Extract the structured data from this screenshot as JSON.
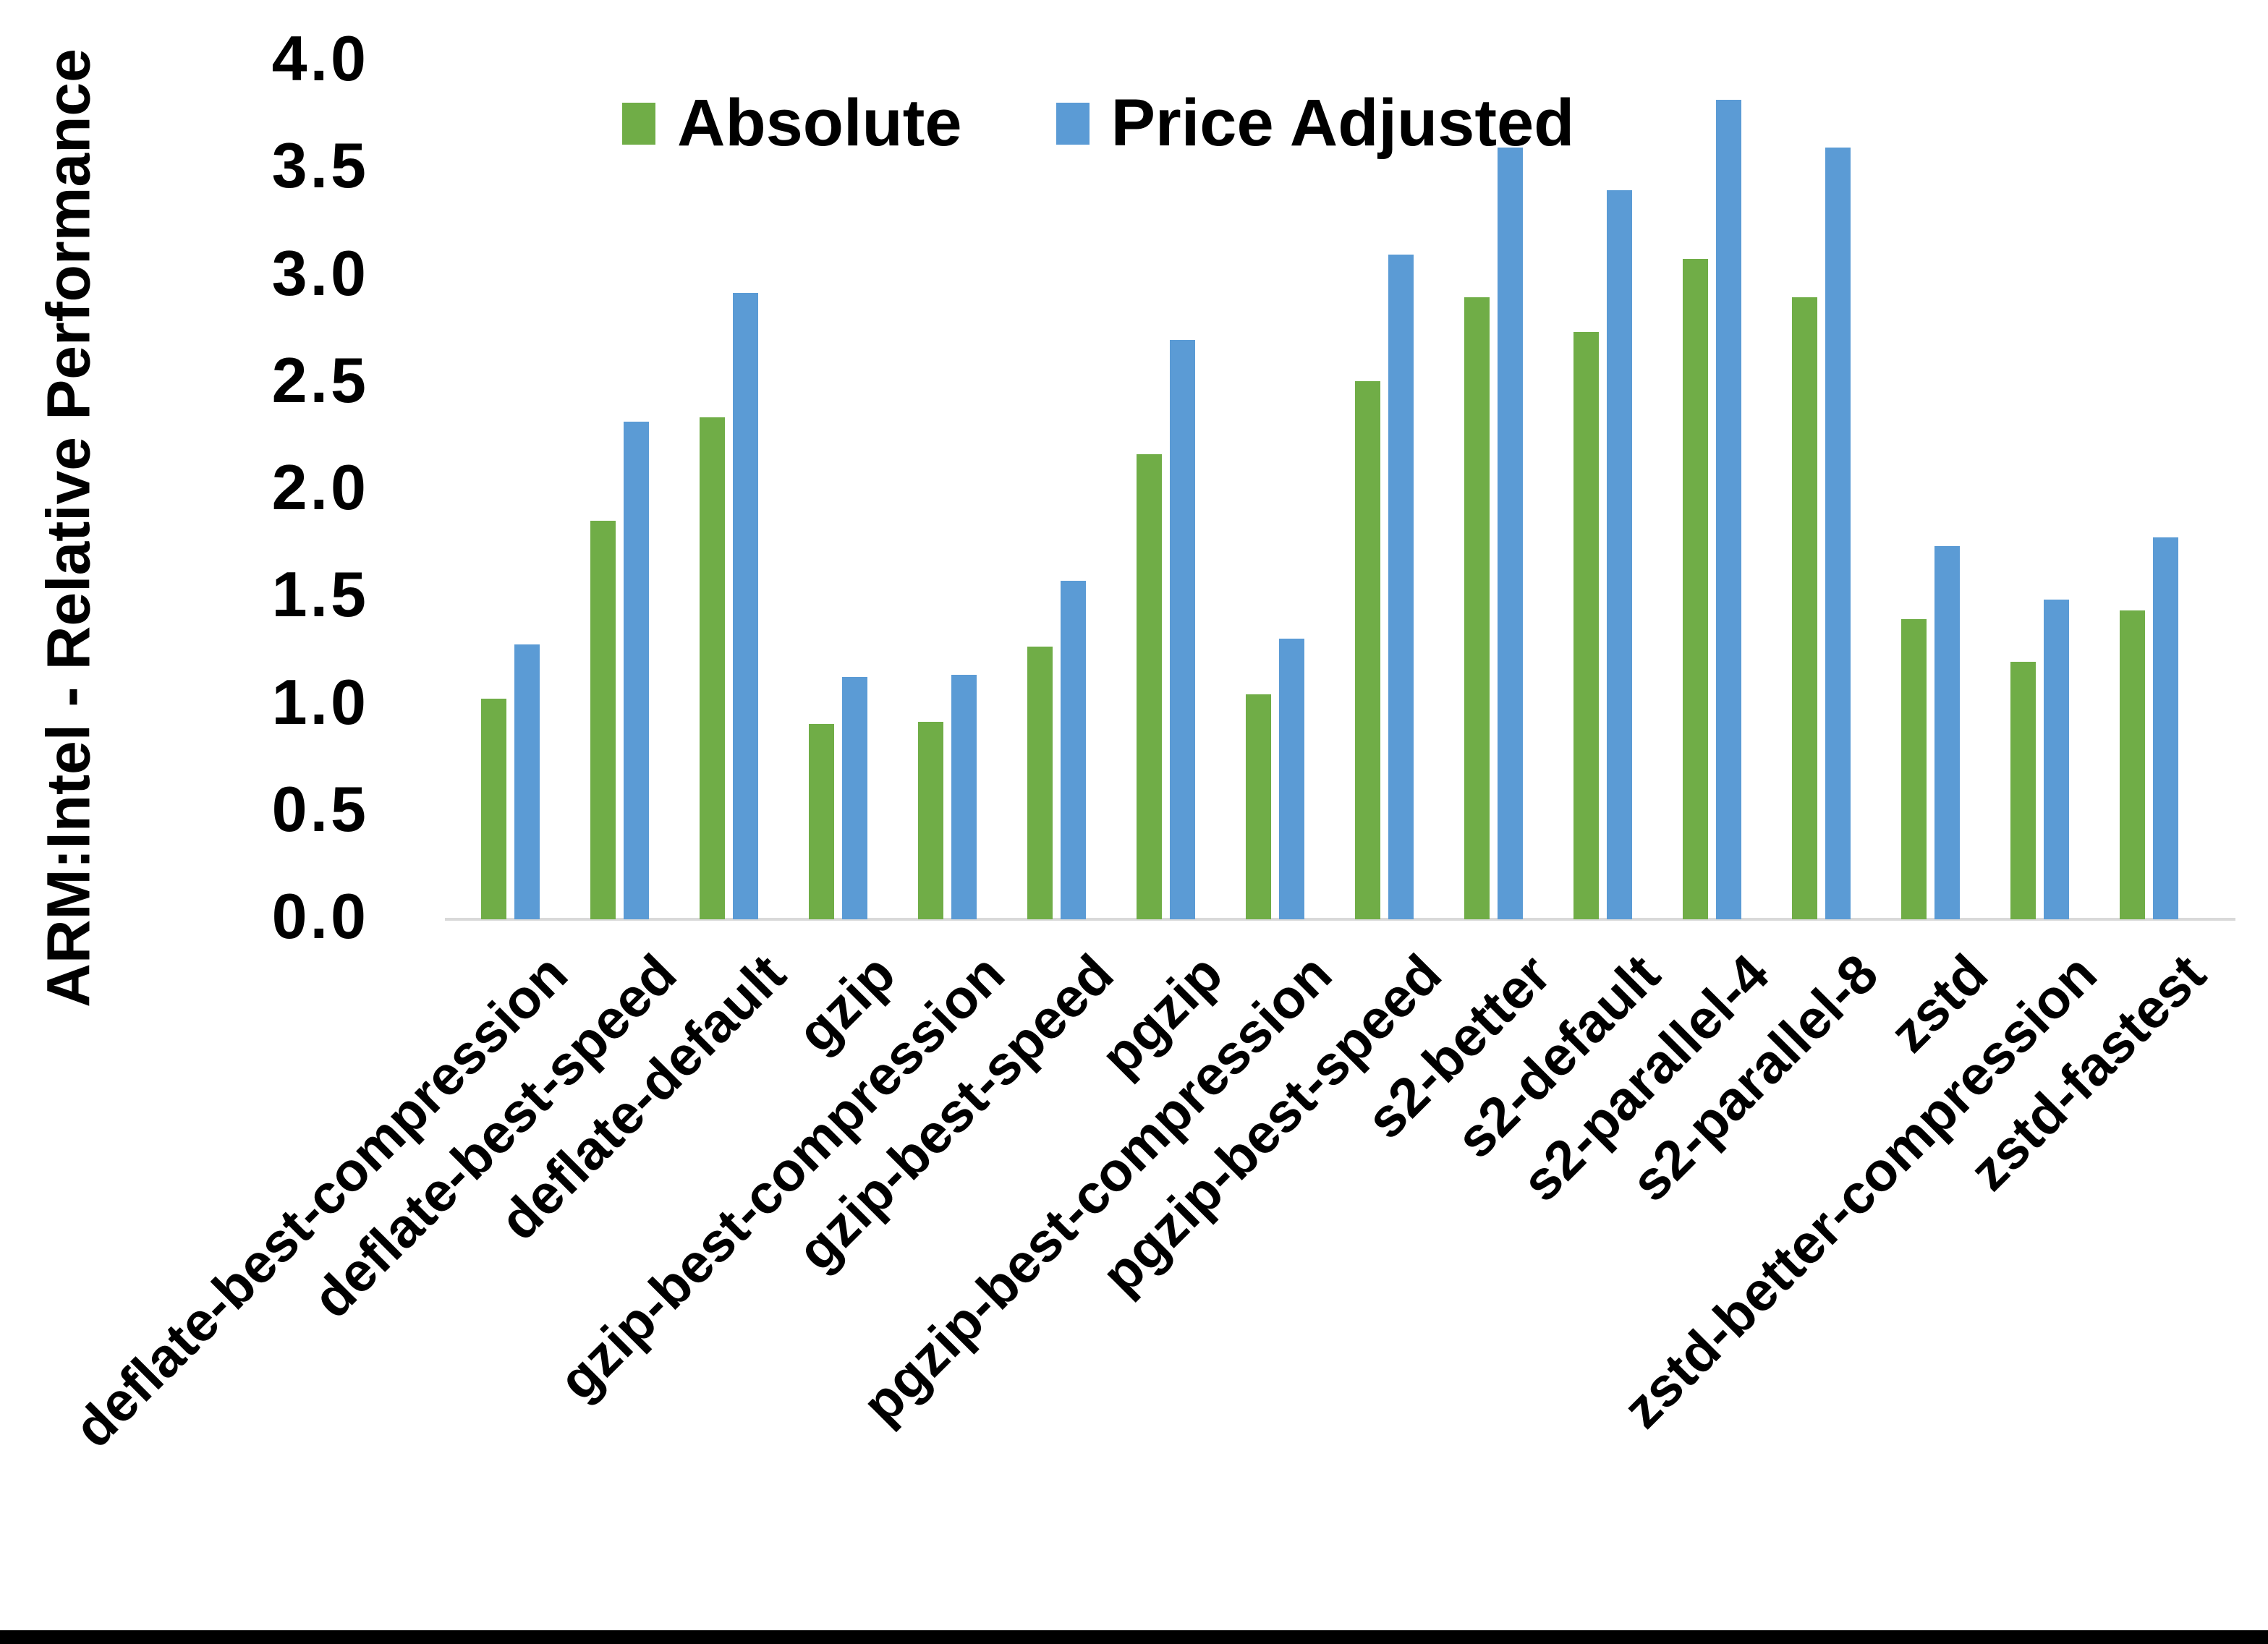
{
  "chart_data": {
    "type": "bar",
    "title": "",
    "xlabel": "",
    "ylabel": "ARM:Intel - Relative Performance",
    "ylim": [
      0.0,
      4.0
    ],
    "ytick_step": 0.5,
    "yticks": [
      "0.0",
      "0.5",
      "1.0",
      "1.5",
      "2.0",
      "2.5",
      "3.0",
      "3.5",
      "4.0"
    ],
    "grid": false,
    "legend_position": "top-center",
    "plot_background": "#ffffff",
    "axis_line_color": "#d9d9d9",
    "categories": [
      "deflate-best-compression",
      "deflate-best-speed",
      "deflate-default",
      "gzip",
      "gzip-best-compression",
      "gzip-best-speed",
      "pgzip",
      "pgzip-best-compression",
      "pgzip-best-speed",
      "s2-better",
      "s2-default",
      "s2-parallel-4",
      "s2-parallel-8",
      "zstd",
      "zstd-better-compression",
      "zstd-fastest"
    ],
    "series": [
      {
        "name": "Absolute",
        "color": "#70AD47",
        "values": [
          1.03,
          1.86,
          2.34,
          0.91,
          0.92,
          1.27,
          2.17,
          1.05,
          2.51,
          2.9,
          2.74,
          3.08,
          2.9,
          1.4,
          1.2,
          1.44
        ]
      },
      {
        "name": "Price Adjusted",
        "color": "#5B9BD5",
        "values": [
          1.28,
          2.32,
          2.92,
          1.13,
          1.14,
          1.58,
          2.7,
          1.31,
          3.1,
          3.6,
          3.4,
          3.82,
          3.6,
          1.74,
          1.49,
          1.78
        ]
      }
    ]
  }
}
